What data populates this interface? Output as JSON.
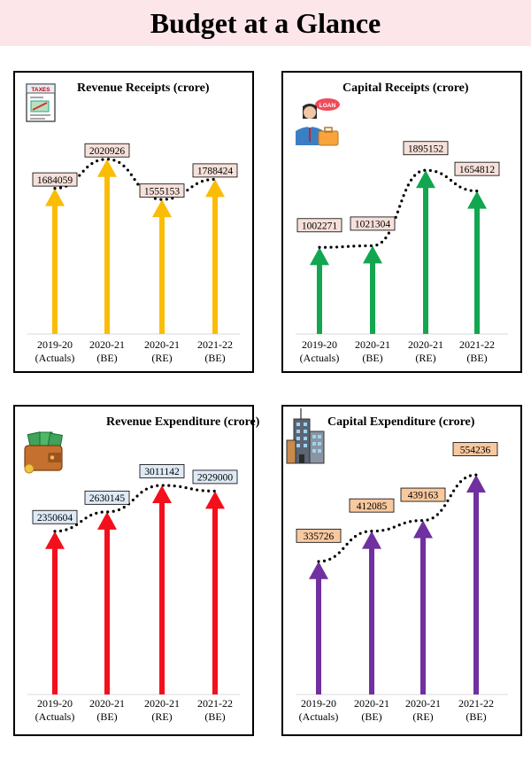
{
  "title": "Budget at a Glance",
  "colors": {
    "title_band": "#fde6ea",
    "revenue_receipts": "#fbbc05",
    "capital_receipts": "#12a650",
    "revenue_expenditure": "#f40f1c",
    "capital_expenditure": "#7030a0"
  },
  "icons": [
    "taxes-document-icon",
    "businesswoman-loan-icon",
    "wallet-money-icon",
    "office-building-icon"
  ],
  "tax_icon_text": "TAXES",
  "loan_icon_text": "LOAN",
  "chart_data": [
    {
      "type": "bar",
      "title": "Revenue Receipts (crore)",
      "categories": [
        [
          "2019-20",
          "(Actuals)"
        ],
        [
          "2020-21",
          "(BE)"
        ],
        [
          "2020-21",
          "(RE)"
        ],
        [
          "2021-22",
          "(BE)"
        ]
      ],
      "values": [
        1684059,
        2020926,
        1555153,
        1788424
      ],
      "value_labels": [
        "1684059",
        "2020926",
        "1555153",
        "1788424"
      ],
      "ylim": [
        0,
        2100000
      ],
      "color": "#fbbc05",
      "label_fill": "#f6e0da",
      "trend_line": "dotted"
    },
    {
      "type": "bar",
      "title": "Capital Receipts (crore)",
      "categories": [
        [
          "2019-20",
          "(Actuals)"
        ],
        [
          "2020-21",
          "(BE)"
        ],
        [
          "2020-21",
          "(RE)"
        ],
        [
          "2021-22",
          "(BE)"
        ]
      ],
      "values": [
        1002271,
        1021304,
        1895152,
        1654812
      ],
      "value_labels": [
        "1002271",
        "1021304",
        "1895152",
        "1654812"
      ],
      "ylim": [
        0,
        2000000
      ],
      "color": "#12a650",
      "label_fill": "#f6e0da",
      "trend_line": "dotted"
    },
    {
      "type": "bar",
      "title": "Revenue Expenditure (crore)",
      "categories": [
        [
          "2019-20",
          "(Actuals)"
        ],
        [
          "2020-21",
          "(BE)"
        ],
        [
          "2020-21",
          "(RE)"
        ],
        [
          "2021-22",
          "(BE)"
        ]
      ],
      "values": [
        2350604,
        2630145,
        3011142,
        2929000
      ],
      "value_labels": [
        "2350604",
        "2630145",
        "3011142",
        "2929000"
      ],
      "ylim": [
        0,
        3100000
      ],
      "color": "#f40f1c",
      "label_fill": "#deeaf6",
      "trend_line": "dotted"
    },
    {
      "type": "bar",
      "title": "Capital Expenditure (crore)",
      "categories": [
        [
          "2019-20",
          "(Actuals)"
        ],
        [
          "2020-21",
          "(BE)"
        ],
        [
          "2020-21",
          "(RE)"
        ],
        [
          "2021-22",
          "(BE)"
        ]
      ],
      "values": [
        335726,
        412085,
        439163,
        554236
      ],
      "value_labels": [
        "335726",
        "412085",
        "439163",
        "554236"
      ],
      "ylim": [
        0,
        570000
      ],
      "color": "#7030a0",
      "label_fill": "#f8c89f",
      "trend_line": "dotted"
    }
  ]
}
